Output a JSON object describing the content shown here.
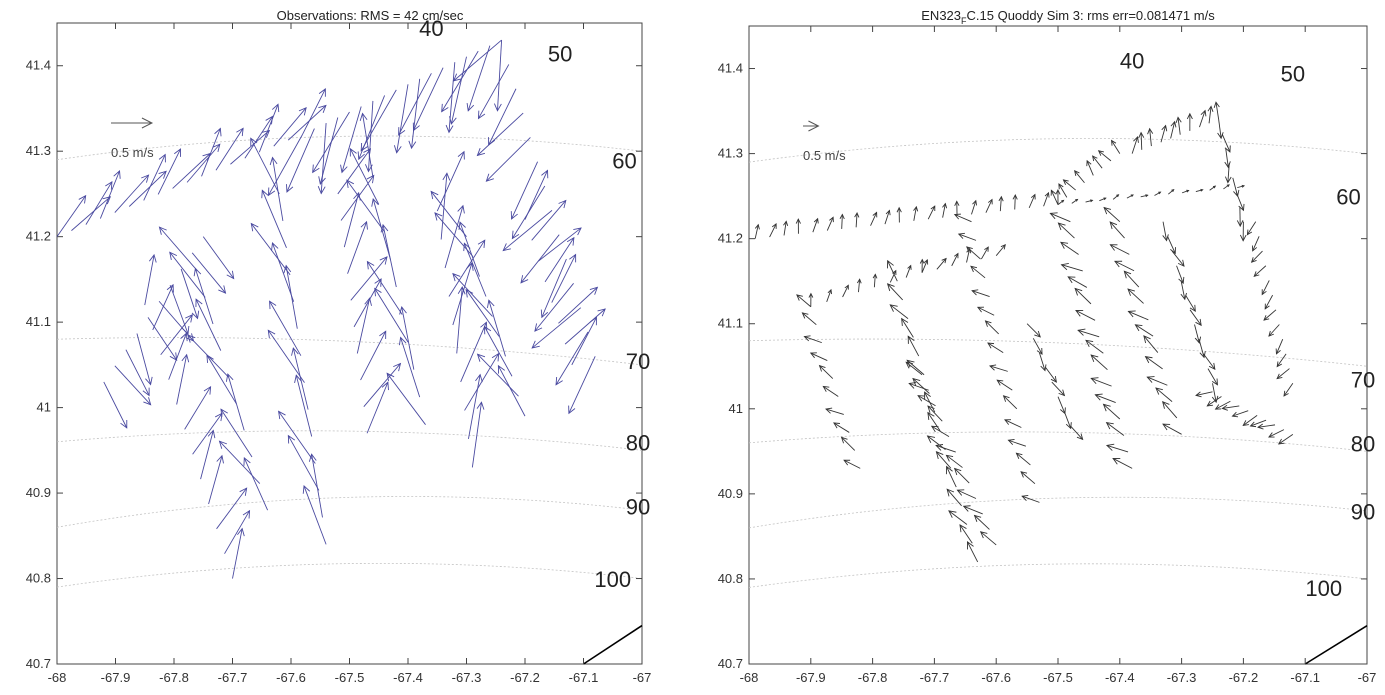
{
  "chart_data": [
    {
      "type": "quiver",
      "title": "Observations: RMS = 42 cm/sec",
      "xlim": [
        -68,
        -67
      ],
      "ylim": [
        40.7,
        41.45
      ],
      "xticks": [
        "-68",
        "-67.9",
        "-67.8",
        "-67.7",
        "-67.6",
        "-67.5",
        "-67.4",
        "-67.3",
        "-67.2",
        "-67.1",
        "-67"
      ],
      "yticks": [
        "40.7",
        "40.8",
        "40.9",
        "41",
        "41.1",
        "41.2",
        "41.3",
        "41.4"
      ],
      "scale_arrow": {
        "label": "0.5 m/s",
        "value": 0.5
      },
      "arrow_color": "#4a4aa0",
      "arrow_scale": 0.14,
      "depth_contours": [
        {
          "label": "40",
          "x": -67.36,
          "y": 41.435
        },
        {
          "label": "50",
          "x": -67.14,
          "y": 41.405
        },
        {
          "label": "60",
          "x": -67.03,
          "y": 41.28
        },
        {
          "label": "70",
          "x": -66.96,
          "y": 41.045
        },
        {
          "label": "80",
          "x": -66.97,
          "y": 40.95
        },
        {
          "label": "90",
          "x": -66.98,
          "y": 40.875
        },
        {
          "label": "100",
          "x": -67.05,
          "y": 40.79
        }
      ],
      "transects": [
        {
          "from": [
            -68.0,
            41.2
          ],
          "to": [
            -67.58,
            41.32
          ],
          "n": 18,
          "u": 0.35,
          "v": 0.5
        },
        {
          "from": [
            -67.58,
            41.32
          ],
          "to": [
            -67.24,
            41.43
          ],
          "n": 18,
          "u": -0.25,
          "v": -0.8
        },
        {
          "from": [
            -67.24,
            41.43
          ],
          "to": [
            -67.08,
            41.06
          ],
          "n": 14,
          "u": -0.45,
          "v": -0.6
        },
        {
          "from": [
            -67.92,
            41.03
          ],
          "to": [
            -67.75,
            41.2
          ],
          "n": 10,
          "u": 0.3,
          "v": -0.55
        },
        {
          "from": [
            -67.76,
            41.16
          ],
          "to": [
            -67.64,
            40.88
          ],
          "n": 10,
          "u": -0.35,
          "v": 0.6
        },
        {
          "from": [
            -67.7,
            40.8
          ],
          "to": [
            -67.85,
            41.12
          ],
          "n": 12,
          "u": 0.25,
          "v": 0.55
        },
        {
          "from": [
            -67.62,
            41.25
          ],
          "to": [
            -67.54,
            40.84
          ],
          "n": 14,
          "u": -0.3,
          "v": 0.7
        },
        {
          "from": [
            -67.52,
            41.25
          ],
          "to": [
            -67.47,
            40.97
          ],
          "n": 10,
          "u": 0.3,
          "v": 0.6
        },
        {
          "from": [
            -67.46,
            41.27
          ],
          "to": [
            -67.37,
            40.98
          ],
          "n": 10,
          "u": -0.3,
          "v": 0.7
        },
        {
          "from": [
            -67.35,
            41.23
          ],
          "to": [
            -67.29,
            40.93
          ],
          "n": 10,
          "u": 0.25,
          "v": 0.75
        },
        {
          "from": [
            -67.3,
            41.2
          ],
          "to": [
            -67.2,
            40.99
          ],
          "n": 10,
          "u": -0.35,
          "v": 0.6
        },
        {
          "from": [
            -67.2,
            41.22
          ],
          "to": [
            -67.12,
            41.05
          ],
          "n": 8,
          "u": 0.4,
          "v": 0.5
        }
      ]
    },
    {
      "type": "quiver",
      "title": "EN323",
      "title_sub": "F",
      "title_rest": "C.15 Quoddy Sim 3: rms err=0.081471 m/s",
      "xlim": [
        -68,
        -67
      ],
      "ylim": [
        40.7,
        41.45
      ],
      "xticks": [
        "-68",
        "-67.9",
        "-67.8",
        "-67.7",
        "-67.6",
        "-67.5",
        "-67.4",
        "-67.3",
        "-67.2",
        "-67.1",
        "-67"
      ],
      "yticks": [
        "40.7",
        "40.8",
        "40.9",
        "41",
        "41.1",
        "41.2",
        "41.3",
        "41.4"
      ],
      "scale_arrow": {
        "label": "0.5 m/s",
        "value": 0.5
      },
      "arrow_color": "#333333",
      "arrow_scale": 0.05,
      "depth_contours": [
        {
          "label": "40",
          "x": -67.38,
          "y": 41.4
        },
        {
          "label": "50",
          "x": -67.12,
          "y": 41.385
        },
        {
          "label": "60",
          "x": -67.03,
          "y": 41.24
        },
        {
          "label": "70",
          "x": -66.96,
          "y": 41.025
        },
        {
          "label": "80",
          "x": -66.97,
          "y": 40.95
        },
        {
          "label": "90",
          "x": -66.98,
          "y": 40.87
        },
        {
          "label": "100",
          "x": -67.07,
          "y": 40.78
        }
      ],
      "transects": [
        {
          "from": [
            -67.99,
            41.2
          ],
          "to": [
            -67.5,
            41.24
          ],
          "n": 22,
          "u": 0.1,
          "v": 0.45
        },
        {
          "from": [
            -67.5,
            41.24
          ],
          "to": [
            -67.4,
            41.3
          ],
          "n": 8,
          "u": -0.3,
          "v": 0.4
        },
        {
          "from": [
            -67.38,
            41.3
          ],
          "to": [
            -67.24,
            41.34
          ],
          "n": 10,
          "u": 0.05,
          "v": 0.55
        },
        {
          "from": [
            -67.24,
            41.34
          ],
          "to": [
            -67.2,
            41.22
          ],
          "n": 8,
          "u": 0.1,
          "v": -0.6
        },
        {
          "from": [
            -67.5,
            41.24
          ],
          "to": [
            -67.21,
            41.26
          ],
          "n": 14,
          "u": 0.2,
          "v": 0.1
        },
        {
          "from": [
            -67.9,
            41.12
          ],
          "to": [
            -67.72,
            41.16
          ],
          "n": 8,
          "u": 0.1,
          "v": 0.4
        },
        {
          "from": [
            -67.72,
            41.16
          ],
          "to": [
            -67.6,
            41.18
          ],
          "n": 6,
          "u": 0.2,
          "v": 0.4
        },
        {
          "from": [
            -67.9,
            41.12
          ],
          "to": [
            -67.82,
            40.93
          ],
          "n": 10,
          "u": -0.5,
          "v": 0.3
        },
        {
          "from": [
            -67.76,
            41.15
          ],
          "to": [
            -67.63,
            40.82
          ],
          "n": 16,
          "u": -0.45,
          "v": 0.55
        },
        {
          "from": [
            -67.72,
            41.04
          ],
          "to": [
            -67.6,
            40.84
          ],
          "n": 12,
          "u": -0.55,
          "v": 0.35
        },
        {
          "from": [
            -67.64,
            41.22
          ],
          "to": [
            -67.53,
            40.89
          ],
          "n": 16,
          "u": -0.5,
          "v": 0.3
        },
        {
          "from": [
            -67.55,
            41.1
          ],
          "to": [
            -67.48,
            40.98
          ],
          "n": 8,
          "u": 0.3,
          "v": -0.5
        },
        {
          "from": [
            -67.48,
            41.22
          ],
          "to": [
            -67.38,
            40.93
          ],
          "n": 16,
          "u": -0.6,
          "v": 0.35
        },
        {
          "from": [
            -67.4,
            41.22
          ],
          "to": [
            -67.3,
            40.97
          ],
          "n": 14,
          "u": -0.55,
          "v": 0.4
        },
        {
          "from": [
            -67.33,
            41.22
          ],
          "to": [
            -67.25,
            41.03
          ],
          "n": 12,
          "u": 0.25,
          "v": -0.55
        },
        {
          "from": [
            -67.25,
            41.02
          ],
          "to": [
            -67.12,
            40.97
          ],
          "n": 10,
          "u": -0.5,
          "v": -0.2
        },
        {
          "from": [
            -67.18,
            41.22
          ],
          "to": [
            -67.12,
            41.03
          ],
          "n": 12,
          "u": -0.3,
          "v": -0.4
        }
      ]
    }
  ]
}
